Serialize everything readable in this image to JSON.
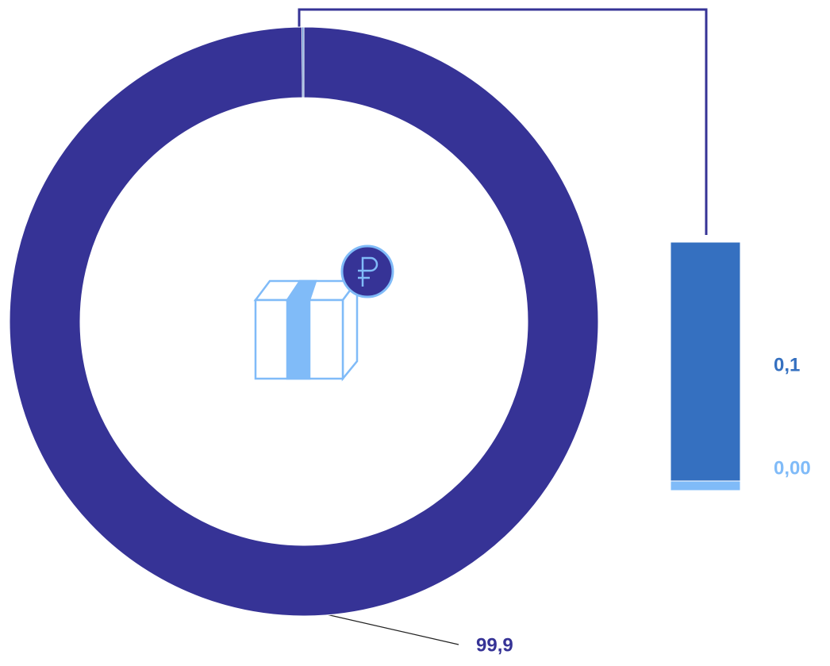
{
  "chart_data": {
    "type": "pie",
    "values": [
      99.9,
      0.1,
      0.004
    ],
    "value_labels": [
      "99,9",
      "0,1",
      "0,00"
    ],
    "colors": [
      "#363396",
      "#3570c0",
      "#80bbf8"
    ]
  }
}
